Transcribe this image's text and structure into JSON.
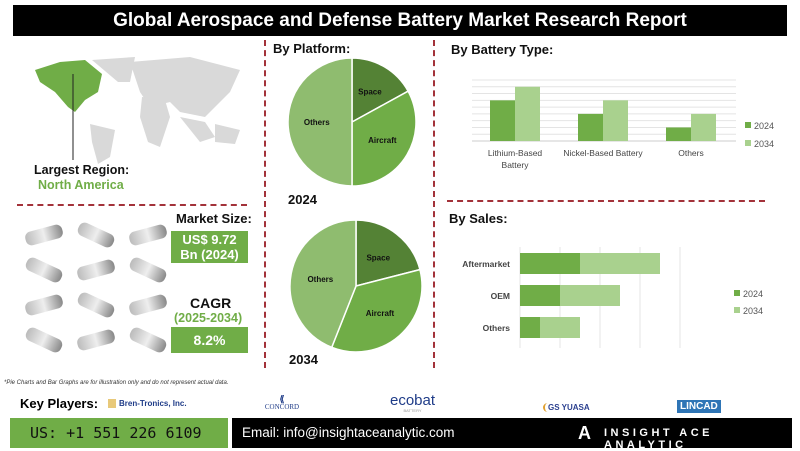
{
  "header": {
    "title": "Global Aerospace and Defense Battery Market Research Report"
  },
  "region": {
    "label": "Largest Region:",
    "value": "North America"
  },
  "market_size": {
    "label": "Market Size:",
    "value_line1": "US$ 9.72",
    "value_line2": "Bn (2024)"
  },
  "cagr": {
    "label": "CAGR",
    "period": "(2025-2034)",
    "value": "8.2%"
  },
  "colors": {
    "dark_green": "#548235",
    "mid_green": "#70ad47",
    "light_green": "#a9d18e",
    "pie_light": "#8fbc6f",
    "accent_red": "#a3323a"
  },
  "chart_data": [
    {
      "type": "pie",
      "title": "By Platform:",
      "caption": "2024",
      "slices": [
        {
          "label": "Space",
          "value": 17
        },
        {
          "label": "Aircraft",
          "value": 33
        },
        {
          "label": "Others",
          "value": 50
        }
      ]
    },
    {
      "type": "pie",
      "caption": "2034",
      "slices": [
        {
          "label": "Space",
          "value": 21
        },
        {
          "label": "Aircraft",
          "value": 35
        },
        {
          "label": "Others",
          "value": 44
        }
      ]
    },
    {
      "type": "bar",
      "title": "By Battery Type:",
      "categories": [
        "Lithium-Based Battery",
        "Nickel-Based Battery",
        "Others"
      ],
      "series": [
        {
          "name": "2024",
          "values": [
            6,
            4,
            2
          ]
        },
        {
          "name": "2034",
          "values": [
            8,
            6,
            4
          ]
        }
      ],
      "ylim": [
        0,
        9
      ],
      "grid": true,
      "legend": "right"
    },
    {
      "type": "bar",
      "orientation": "horizontal",
      "stacked": true,
      "title": "By Sales:",
      "categories": [
        "Aftermarket",
        "OEM",
        "Others"
      ],
      "series": [
        {
          "name": "2024",
          "values": [
            1.5,
            1,
            0.5
          ]
        },
        {
          "name": "2034",
          "values": [
            2,
            1.5,
            1
          ]
        }
      ],
      "xlim": [
        0,
        4
      ],
      "grid": true,
      "legend": "right"
    }
  ],
  "footnote": "*Pie Charts and Bar Graphs are for illustration only and do not represent actual data.",
  "key_players": {
    "label": "Key Players:",
    "logos": [
      "Bren-Tronics, Inc.",
      "CONCORD",
      "ecobat",
      "GS YUASA",
      "LINCAD"
    ],
    "ecobat_sub": "BATTERY"
  },
  "footer": {
    "phone": "US: +1 551 226 6109",
    "email": "Email: info@insightaceanalytic.com",
    "brand": "INSIGHT ACE ANALYTIC"
  }
}
